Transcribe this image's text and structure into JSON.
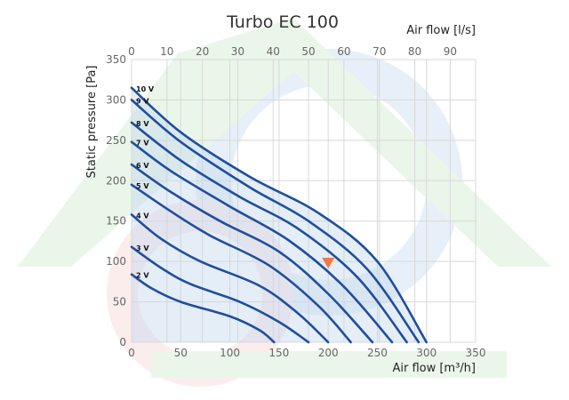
{
  "chart_data": {
    "type": "line",
    "title": "Turbo EC 100",
    "xlabel": "Air flow [m³/h]",
    "x2label": "Air flow [l/s]",
    "ylabel": "Static pressure [Pa]",
    "xlim": [
      0,
      350
    ],
    "ylim": [
      0,
      350
    ],
    "x2lim": [
      0,
      97.2
    ],
    "x_ticks": [
      "0",
      "50",
      "100",
      "150",
      "200",
      "250",
      "300",
      "350"
    ],
    "x2_ticks": [
      "0",
      "10",
      "20",
      "30",
      "40",
      "50",
      "60",
      "70",
      "80",
      "90"
    ],
    "y_ticks": [
      "0",
      "50",
      "100",
      "150",
      "200",
      "250",
      "300",
      "350"
    ],
    "grid": true,
    "series": [
      {
        "name": "2 V",
        "points": [
          [
            0,
            84
          ],
          [
            20,
            67
          ],
          [
            50,
            50
          ],
          [
            100,
            32
          ],
          [
            130,
            15
          ],
          [
            145,
            0
          ]
        ]
      },
      {
        "name": "3 V",
        "points": [
          [
            0,
            118
          ],
          [
            30,
            92
          ],
          [
            60,
            72
          ],
          [
            110,
            50
          ],
          [
            150,
            25
          ],
          [
            180,
            0
          ]
        ]
      },
      {
        "name": "4 V",
        "points": [
          [
            0,
            158
          ],
          [
            30,
            128
          ],
          [
            70,
            100
          ],
          [
            130,
            70
          ],
          [
            170,
            35
          ],
          [
            200,
            0
          ]
        ]
      },
      {
        "name": "5 V",
        "points": [
          [
            0,
            195
          ],
          [
            40,
            162
          ],
          [
            80,
            132
          ],
          [
            140,
            95
          ],
          [
            190,
            45
          ],
          [
            223,
            0
          ]
        ]
      },
      {
        "name": "6 V",
        "points": [
          [
            0,
            220
          ],
          [
            40,
            186
          ],
          [
            90,
            150
          ],
          [
            150,
            112
          ],
          [
            200,
            60
          ],
          [
            245,
            0
          ]
        ]
      },
      {
        "name": "7 V",
        "points": [
          [
            0,
            248
          ],
          [
            40,
            212
          ],
          [
            100,
            168
          ],
          [
            160,
            126
          ],
          [
            215,
            70
          ],
          [
            265,
            0
          ]
        ]
      },
      {
        "name": "8 V",
        "points": [
          [
            0,
            272
          ],
          [
            50,
            225
          ],
          [
            110,
            180
          ],
          [
            170,
            140
          ],
          [
            230,
            80
          ],
          [
            280,
            0
          ]
        ]
      },
      {
        "name": "9 V",
        "points": [
          [
            0,
            300
          ],
          [
            50,
            248
          ],
          [
            120,
            192
          ],
          [
            180,
            150
          ],
          [
            240,
            90
          ],
          [
            292,
            0
          ]
        ]
      },
      {
        "name": "10 V",
        "points": [
          [
            0,
            315
          ],
          [
            50,
            260
          ],
          [
            120,
            205
          ],
          [
            190,
            160
          ],
          [
            250,
            100
          ],
          [
            300,
            0
          ]
        ]
      }
    ],
    "marker": {
      "x": 200,
      "y": 98,
      "color": "#f07a43"
    },
    "curve_color": "#1f4e9c",
    "fill_color": "#c5d6ee"
  }
}
